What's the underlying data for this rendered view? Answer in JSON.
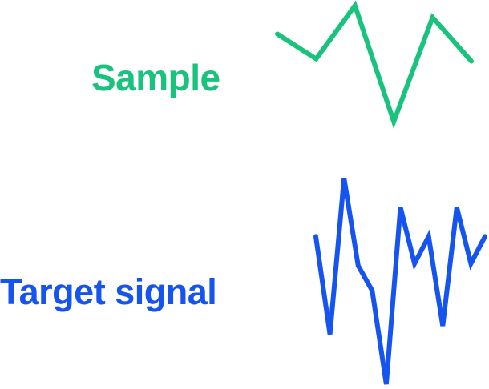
{
  "diagram": {
    "sample": {
      "label": "Sample",
      "color": "#19c37d",
      "waveform": [
        0.74,
        0.53,
        0.98,
        0.0,
        0.88,
        0.51
      ]
    },
    "target": {
      "label": "Target signal",
      "color": "#1654f0",
      "waveform": [
        0.71,
        0.24,
        0.99,
        0.57,
        0.45,
        0.0,
        0.85,
        0.58,
        0.71,
        0.28,
        0.85,
        0.58,
        0.71
      ]
    }
  }
}
